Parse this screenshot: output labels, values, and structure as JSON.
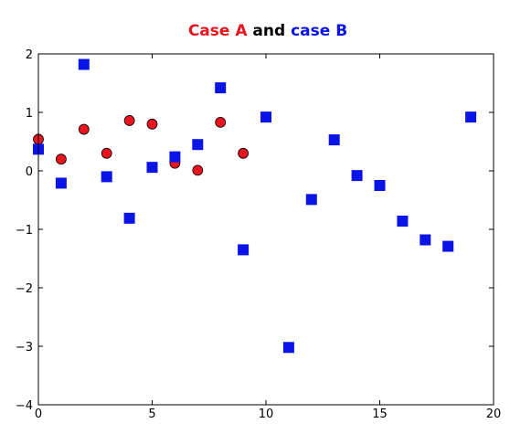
{
  "chart_data": {
    "type": "scatter",
    "title_parts": [
      {
        "text": "Case A",
        "color": "#e8141e"
      },
      {
        "text": " and ",
        "color": "#000000"
      },
      {
        "text": "case B",
        "color": "#0a14e6"
      }
    ],
    "xlabel": "",
    "ylabel": "",
    "xlim": [
      0,
      20
    ],
    "ylim": [
      -4,
      2
    ],
    "x_ticks": [
      0,
      5,
      10,
      15,
      20
    ],
    "y_ticks": [
      2,
      1,
      0,
      -1,
      -2,
      -3,
      -4
    ],
    "x_tick_labels": [
      "0",
      "5",
      "10",
      "15",
      "20"
    ],
    "y_tick_labels": [
      "2",
      "1",
      "0",
      "−1",
      "−2",
      "−3",
      "−4"
    ],
    "grid": false,
    "series": [
      {
        "marker": "circle",
        "color": "#e8141e",
        "x": [
          0,
          1,
          2,
          3,
          4,
          5,
          6,
          7,
          8,
          9
        ],
        "y": [
          0.54,
          0.2,
          0.71,
          0.3,
          0.86,
          0.8,
          0.13,
          0.01,
          0.83,
          0.3
        ]
      },
      {
        "marker": "square",
        "color": "#0a14e6",
        "x": [
          0,
          1,
          2,
          3,
          4,
          5,
          6,
          7,
          8,
          9,
          10,
          11,
          12,
          13,
          14,
          15,
          16,
          17,
          18,
          19
        ],
        "y": [
          0.37,
          -0.21,
          1.82,
          -0.1,
          -0.81,
          0.06,
          0.24,
          0.45,
          1.42,
          -1.35,
          0.92,
          -3.02,
          -0.49,
          0.53,
          -0.08,
          -0.25,
          -0.86,
          -1.18,
          -1.29,
          0.92
        ]
      }
    ]
  }
}
